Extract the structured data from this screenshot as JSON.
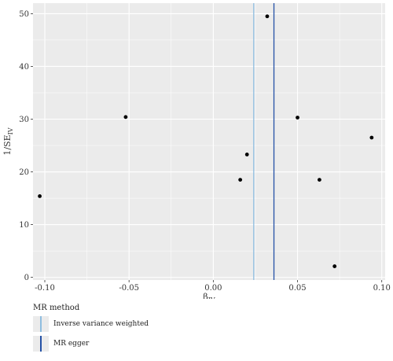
{
  "chart_data": {
    "type": "scatter",
    "title": "",
    "xlabel_main": "β",
    "xlabel_sub": "IV",
    "ylabel_main": "1/SE",
    "ylabel_sub": "IV",
    "xlim": [
      -0.107,
      0.102
    ],
    "ylim": [
      -0.5,
      52
    ],
    "x_ticks": [
      -0.1,
      -0.05,
      0.0,
      0.05,
      0.1
    ],
    "x_tick_labels": [
      "-0.10",
      "-0.05",
      "0.00",
      "0.05",
      "0.10"
    ],
    "y_ticks": [
      0,
      10,
      20,
      30,
      40,
      50
    ],
    "y_tick_labels": [
      "0",
      "10",
      "20",
      "30",
      "40",
      "50"
    ],
    "grid": true,
    "points": [
      {
        "x": -0.103,
        "y": 15.4
      },
      {
        "x": -0.052,
        "y": 30.4
      },
      {
        "x": 0.016,
        "y": 18.5
      },
      {
        "x": 0.02,
        "y": 23.3
      },
      {
        "x": 0.032,
        "y": 49.5
      },
      {
        "x": 0.05,
        "y": 30.3
      },
      {
        "x": 0.063,
        "y": 18.5
      },
      {
        "x": 0.072,
        "y": 2.1
      },
      {
        "x": 0.094,
        "y": 26.5
      }
    ],
    "vlines": [
      {
        "name": "Inverse variance weighted",
        "x": 0.024,
        "color": "#8fbde0"
      },
      {
        "name": "MR egger",
        "x": 0.036,
        "color": "#2451a6"
      }
    ],
    "legend": {
      "title": "MR method",
      "position": "bottom-left",
      "entries": [
        "Inverse variance weighted",
        "MR egger"
      ]
    },
    "colors": {
      "panel": "#ebebeb",
      "grid": "#ffffff",
      "point": "#000000"
    }
  }
}
